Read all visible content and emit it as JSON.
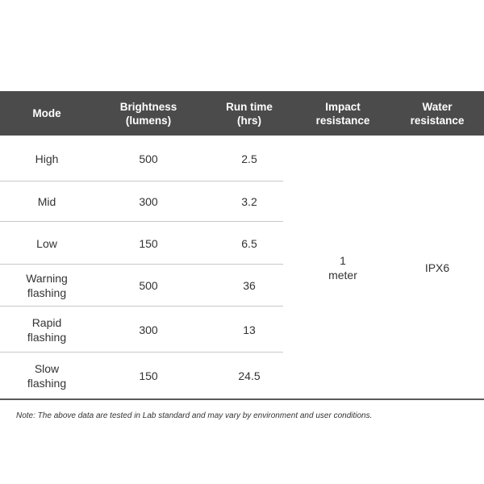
{
  "table": {
    "headers": [
      "Mode",
      "Brightness\n(lumens)",
      "Run time\n(hrs)",
      "Impact\nresistance",
      "Water\nresistance"
    ],
    "rows": [
      {
        "mode": "High",
        "brightness": "500",
        "runtime": "2.5"
      },
      {
        "mode": "Mid",
        "brightness": "300",
        "runtime": "3.2"
      },
      {
        "mode": "Low",
        "brightness": "150",
        "runtime": "6.5"
      },
      {
        "mode": "Warning\nflashing",
        "brightness": "500",
        "runtime": "36"
      },
      {
        "mode": "Rapid\nflashing",
        "brightness": "300",
        "runtime": "13"
      },
      {
        "mode": "Slow\nflashing",
        "brightness": "150",
        "runtime": "24.5"
      }
    ],
    "impact_resistance": "1\nmeter",
    "water_resistance": "IPX6"
  },
  "note": "Note: The above data are tested in Lab standard and may vary by environment and user conditions.",
  "colors": {
    "header_bg": "#4b4b4b",
    "header_text": "#ffffff",
    "row_divider": "#c8c8c8"
  }
}
